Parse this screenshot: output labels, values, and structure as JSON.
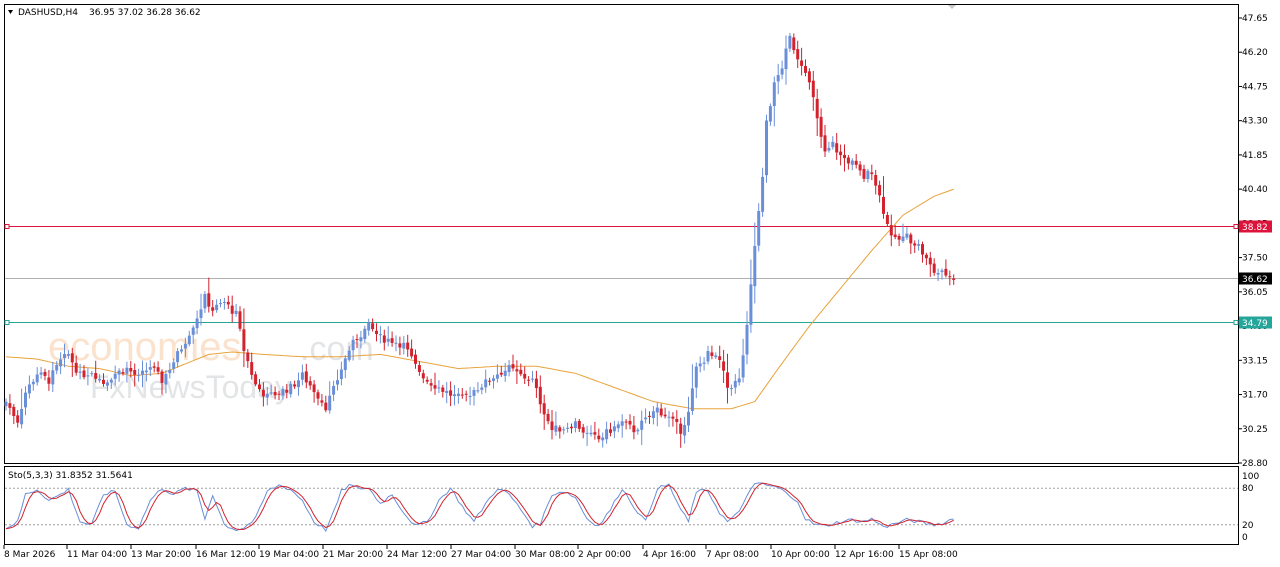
{
  "header": {
    "symbol_label": "DASHUSD,H4",
    "ohlc_label": "36.95 37.02 36.28 36.62"
  },
  "stoch": {
    "label": "Sto(5,3,3) 31.8352 31.5641",
    "scale_labels": [
      "100",
      "80",
      "20",
      "0"
    ]
  },
  "price_levels": {
    "resistance": {
      "value": 38.82,
      "label": "38.82",
      "color": "#dc143c"
    },
    "current": {
      "value": 36.62,
      "label": "36.62",
      "color": "#000000"
    },
    "support": {
      "value": 34.79,
      "label": "34.79",
      "color": "#26a69a"
    }
  },
  "watermark": {
    "brand_main": "economies",
    "brand_suffix": ".com",
    "brand_secondary": "FxNewsToday"
  },
  "colors": {
    "bull": "#6a8fd8",
    "bear": "#d2222d",
    "ma": "#e8a33d",
    "stoch_main": "#6a8fd8",
    "stoch_signal": "#d2222d"
  },
  "chart_data": {
    "type": "candlestick",
    "symbol": "DASHUSD",
    "timeframe": "H4",
    "ylim": [
      28.8,
      48.2
    ],
    "y_ticks": [
      "47.65",
      "46.20",
      "44.75",
      "43.30",
      "41.85",
      "40.40",
      "38.95",
      "37.50",
      "36.05",
      "34.60",
      "33.15",
      "31.70",
      "30.25",
      "28.80"
    ],
    "x_labels": [
      "8 Mar 2026",
      "11 Mar 04:00",
      "13 Mar 20:00",
      "16 Mar 12:00",
      "19 Mar 04:00",
      "21 Mar 20:00",
      "24 Mar 12:00",
      "27 Mar 04:00",
      "30 Mar 08:00",
      "2 Apr 00:00",
      "4 Apr 16:00",
      "7 Apr 08:00",
      "10 Apr 00:00",
      "12 Apr 16:00",
      "15 Apr 08:00"
    ],
    "price_path": [
      [
        0,
        31.4
      ],
      [
        3,
        30.6
      ],
      [
        5,
        31.8
      ],
      [
        8,
        32.6
      ],
      [
        11,
        32.3
      ],
      [
        14,
        33.1
      ],
      [
        16,
        33.4
      ],
      [
        19,
        32.5
      ],
      [
        22,
        32.7
      ],
      [
        25,
        32.2
      ],
      [
        28,
        32.6
      ],
      [
        31,
        32.8
      ],
      [
        34,
        32.4
      ],
      [
        37,
        32.9
      ],
      [
        40,
        32.3
      ],
      [
        43,
        33.1
      ],
      [
        46,
        34.0
      ],
      [
        49,
        35.0
      ],
      [
        51,
        35.8
      ],
      [
        53,
        35.3
      ],
      [
        56,
        35.6
      ],
      [
        59,
        35.1
      ],
      [
        61,
        33.6
      ],
      [
        64,
        32.1
      ],
      [
        67,
        31.6
      ],
      [
        70,
        31.8
      ],
      [
        73,
        32.0
      ],
      [
        76,
        32.5
      ],
      [
        79,
        31.9
      ],
      [
        82,
        31.2
      ],
      [
        84,
        31.9
      ],
      [
        86,
        32.8
      ],
      [
        88,
        33.6
      ],
      [
        90,
        34.1
      ],
      [
        93,
        34.6
      ],
      [
        96,
        34.1
      ],
      [
        99,
        34.0
      ],
      [
        102,
        33.8
      ],
      [
        105,
        32.9
      ],
      [
        108,
        32.3
      ],
      [
        111,
        32.0
      ],
      [
        114,
        31.7
      ],
      [
        117,
        31.5
      ],
      [
        120,
        31.9
      ],
      [
        123,
        32.2
      ],
      [
        126,
        32.6
      ],
      [
        129,
        32.8
      ],
      [
        132,
        32.5
      ],
      [
        135,
        32.3
      ],
      [
        137,
        31.4
      ],
      [
        140,
        30.2
      ],
      [
        143,
        30.3
      ],
      [
        146,
        30.5
      ],
      [
        149,
        30.0
      ],
      [
        152,
        29.8
      ],
      [
        155,
        30.2
      ],
      [
        158,
        30.5
      ],
      [
        161,
        30.2
      ],
      [
        164,
        30.6
      ],
      [
        167,
        31.1
      ],
      [
        170,
        30.7
      ],
      [
        173,
        30.2
      ],
      [
        175,
        30.9
      ],
      [
        177,
        32.8
      ],
      [
        180,
        33.4
      ],
      [
        183,
        33.1
      ],
      [
        185,
        32.0
      ],
      [
        188,
        32.3
      ],
      [
        190,
        34.5
      ],
      [
        192,
        38.0
      ],
      [
        194,
        40.8
      ],
      [
        195,
        43.3
      ],
      [
        197,
        44.8
      ],
      [
        199,
        45.6
      ],
      [
        201,
        46.8
      ],
      [
        203,
        46.0
      ],
      [
        205,
        45.5
      ],
      [
        207,
        44.2
      ],
      [
        208,
        43.3
      ],
      [
        210,
        41.9
      ],
      [
        212,
        42.3
      ],
      [
        214,
        41.8
      ],
      [
        217,
        41.5
      ],
      [
        220,
        40.9
      ],
      [
        222,
        41.2
      ],
      [
        224,
        40.1
      ],
      [
        226,
        38.9
      ],
      [
        228,
        38.2
      ],
      [
        231,
        38.4
      ],
      [
        234,
        38.0
      ],
      [
        236,
        37.4
      ],
      [
        238,
        36.9
      ],
      [
        241,
        36.8
      ],
      [
        243,
        36.62
      ]
    ],
    "ma_path": [
      [
        0,
        33.3
      ],
      [
        8,
        33.2
      ],
      [
        16,
        32.9
      ],
      [
        24,
        32.8
      ],
      [
        32,
        32.5
      ],
      [
        40,
        32.6
      ],
      [
        46,
        33.0
      ],
      [
        52,
        33.4
      ],
      [
        58,
        33.5
      ],
      [
        66,
        33.4
      ],
      [
        76,
        33.3
      ],
      [
        86,
        33.3
      ],
      [
        96,
        33.4
      ],
      [
        106,
        33.1
      ],
      [
        116,
        32.8
      ],
      [
        126,
        32.9
      ],
      [
        136,
        32.9
      ],
      [
        146,
        32.6
      ],
      [
        156,
        32.0
      ],
      [
        166,
        31.4
      ],
      [
        176,
        31.1
      ],
      [
        186,
        31.1
      ],
      [
        192,
        31.4
      ],
      [
        198,
        32.8
      ],
      [
        206,
        34.6
      ],
      [
        214,
        36.2
      ],
      [
        222,
        37.8
      ],
      [
        230,
        39.3
      ],
      [
        238,
        40.1
      ],
      [
        243,
        40.4
      ]
    ],
    "stoch_path": [
      [
        0,
        15
      ],
      [
        3,
        25
      ],
      [
        5,
        70
      ],
      [
        8,
        78
      ],
      [
        11,
        60
      ],
      [
        14,
        70
      ],
      [
        16,
        78
      ],
      [
        19,
        25
      ],
      [
        22,
        20
      ],
      [
        25,
        70
      ],
      [
        28,
        75
      ],
      [
        31,
        20
      ],
      [
        34,
        15
      ],
      [
        37,
        60
      ],
      [
        40,
        80
      ],
      [
        43,
        70
      ],
      [
        46,
        80
      ],
      [
        49,
        75
      ],
      [
        51,
        30
      ],
      [
        53,
        70
      ],
      [
        56,
        20
      ],
      [
        59,
        12
      ],
      [
        61,
        15
      ],
      [
        64,
        30
      ],
      [
        67,
        75
      ],
      [
        70,
        85
      ],
      [
        73,
        78
      ],
      [
        76,
        60
      ],
      [
        79,
        25
      ],
      [
        82,
        12
      ],
      [
        84,
        40
      ],
      [
        86,
        75
      ],
      [
        88,
        85
      ],
      [
        90,
        80
      ],
      [
        93,
        80
      ],
      [
        96,
        55
      ],
      [
        99,
        70
      ],
      [
        102,
        40
      ],
      [
        105,
        18
      ],
      [
        108,
        25
      ],
      [
        111,
        60
      ],
      [
        114,
        80
      ],
      [
        117,
        50
      ],
      [
        120,
        25
      ],
      [
        123,
        55
      ],
      [
        126,
        80
      ],
      [
        129,
        70
      ],
      [
        132,
        45
      ],
      [
        135,
        18
      ],
      [
        137,
        22
      ],
      [
        140,
        70
      ],
      [
        143,
        75
      ],
      [
        146,
        65
      ],
      [
        149,
        30
      ],
      [
        152,
        18
      ],
      [
        155,
        45
      ],
      [
        158,
        80
      ],
      [
        161,
        50
      ],
      [
        164,
        25
      ],
      [
        167,
        80
      ],
      [
        170,
        85
      ],
      [
        173,
        45
      ],
      [
        175,
        25
      ],
      [
        177,
        75
      ],
      [
        180,
        75
      ],
      [
        183,
        40
      ],
      [
        185,
        25
      ],
      [
        188,
        40
      ],
      [
        190,
        70
      ],
      [
        192,
        85
      ],
      [
        194,
        88
      ],
      [
        195,
        85
      ],
      [
        197,
        82
      ],
      [
        199,
        78
      ],
      [
        201,
        65
      ],
      [
        203,
        60
      ],
      [
        205,
        30
      ],
      [
        207,
        22
      ],
      [
        208,
        20
      ],
      [
        210,
        18
      ],
      [
        212,
        22
      ],
      [
        214,
        25
      ],
      [
        217,
        28
      ],
      [
        220,
        25
      ],
      [
        222,
        30
      ],
      [
        224,
        20
      ],
      [
        226,
        18
      ],
      [
        228,
        22
      ],
      [
        231,
        28
      ],
      [
        234,
        25
      ],
      [
        236,
        22
      ],
      [
        238,
        20
      ],
      [
        241,
        24
      ],
      [
        243,
        32
      ]
    ]
  }
}
